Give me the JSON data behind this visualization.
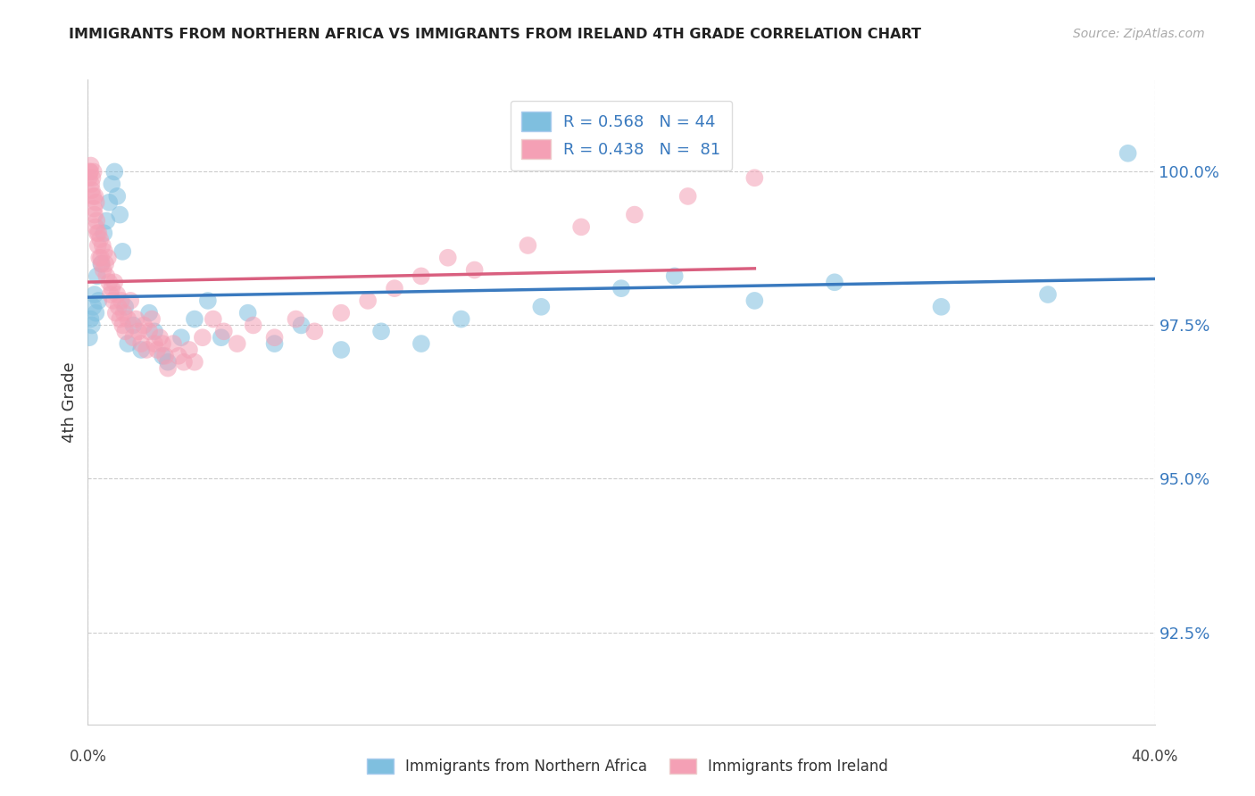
{
  "title": "IMMIGRANTS FROM NORTHERN AFRICA VS IMMIGRANTS FROM IRELAND 4TH GRADE CORRELATION CHART",
  "source": "Source: ZipAtlas.com",
  "ylabel": "4th Grade",
  "yticks": [
    92.5,
    95.0,
    97.5,
    100.0
  ],
  "ytick_labels": [
    "92.5%",
    "95.0%",
    "97.5%",
    "100.0%"
  ],
  "xlim": [
    0.0,
    40.0
  ],
  "ylim": [
    91.0,
    101.5
  ],
  "legend_blue_label": "R = 0.568   N = 44",
  "legend_pink_label": "R = 0.438   N =  81",
  "legend_bottom_blue": "Immigrants from Northern Africa",
  "legend_bottom_pink": "Immigrants from Ireland",
  "blue_color": "#7fbfdf",
  "pink_color": "#f4a0b5",
  "blue_line_color": "#3a7abf",
  "pink_line_color": "#d95f7f",
  "blue_x": [
    0.05,
    0.1,
    0.15,
    0.2,
    0.25,
    0.3,
    0.35,
    0.4,
    0.5,
    0.6,
    0.7,
    0.8,
    0.9,
    1.0,
    1.1,
    1.2,
    1.3,
    1.4,
    1.5,
    1.7,
    2.0,
    2.3,
    2.5,
    2.8,
    3.0,
    3.5,
    4.0,
    4.5,
    5.0,
    6.0,
    7.0,
    8.0,
    9.5,
    11.0,
    12.5,
    14.0,
    17.0,
    20.0,
    22.0,
    25.0,
    28.0,
    32.0,
    36.0,
    39.0
  ],
  "blue_y": [
    97.3,
    97.6,
    97.5,
    97.8,
    98.0,
    97.7,
    98.3,
    97.9,
    98.5,
    99.0,
    99.2,
    99.5,
    99.8,
    100.0,
    99.6,
    99.3,
    98.7,
    97.8,
    97.2,
    97.5,
    97.1,
    97.7,
    97.4,
    97.0,
    96.9,
    97.3,
    97.6,
    97.9,
    97.3,
    97.7,
    97.2,
    97.5,
    97.1,
    97.4,
    97.2,
    97.6,
    97.8,
    98.1,
    98.3,
    97.9,
    98.2,
    97.8,
    98.0,
    100.3
  ],
  "pink_x": [
    0.05,
    0.07,
    0.09,
    0.11,
    0.13,
    0.15,
    0.17,
    0.19,
    0.21,
    0.23,
    0.25,
    0.27,
    0.29,
    0.31,
    0.33,
    0.35,
    0.38,
    0.4,
    0.43,
    0.46,
    0.49,
    0.52,
    0.55,
    0.58,
    0.62,
    0.66,
    0.7,
    0.75,
    0.8,
    0.85,
    0.9,
    0.95,
    1.0,
    1.05,
    1.1,
    1.15,
    1.2,
    1.25,
    1.3,
    1.35,
    1.4,
    1.5,
    1.6,
    1.7,
    1.8,
    1.9,
    2.0,
    2.1,
    2.2,
    2.3,
    2.4,
    2.5,
    2.6,
    2.7,
    2.8,
    2.9,
    3.0,
    3.2,
    3.4,
    3.6,
    3.8,
    4.0,
    4.3,
    4.7,
    5.1,
    5.6,
    6.2,
    7.0,
    7.8,
    8.5,
    9.5,
    10.5,
    11.5,
    12.5,
    13.5,
    14.5,
    16.5,
    18.5,
    20.5,
    22.5,
    25.0
  ],
  "pink_y": [
    99.9,
    100.0,
    100.0,
    100.1,
    99.8,
    99.7,
    99.9,
    99.6,
    100.0,
    99.4,
    99.3,
    99.6,
    99.1,
    99.5,
    99.2,
    99.0,
    98.8,
    99.0,
    98.6,
    98.9,
    98.6,
    98.5,
    98.8,
    98.4,
    98.7,
    98.5,
    98.3,
    98.6,
    98.2,
    98.0,
    98.1,
    97.9,
    98.2,
    97.7,
    98.0,
    97.8,
    97.6,
    97.9,
    97.5,
    97.7,
    97.4,
    97.6,
    97.9,
    97.3,
    97.6,
    97.4,
    97.2,
    97.5,
    97.1,
    97.4,
    97.6,
    97.2,
    97.1,
    97.3,
    97.2,
    97.0,
    96.8,
    97.2,
    97.0,
    96.9,
    97.1,
    96.9,
    97.3,
    97.6,
    97.4,
    97.2,
    97.5,
    97.3,
    97.6,
    97.4,
    97.7,
    97.9,
    98.1,
    98.3,
    98.6,
    98.4,
    98.8,
    99.1,
    99.3,
    99.6,
    99.9
  ]
}
